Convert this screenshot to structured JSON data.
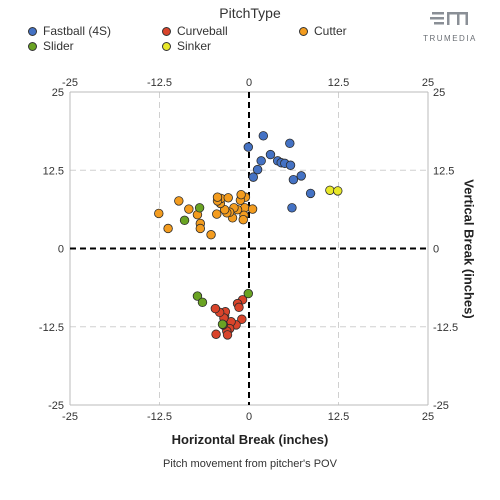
{
  "legend": {
    "title": "PitchType",
    "items": [
      {
        "label": "Fastball (4S)",
        "color": "#4472c4"
      },
      {
        "label": "Curveball",
        "color": "#d9442b"
      },
      {
        "label": "Cutter",
        "color": "#f39c1f"
      },
      {
        "label": "Slider",
        "color": "#6aa323"
      },
      {
        "label": "Sinker",
        "color": "#e8e82a"
      }
    ]
  },
  "brand": {
    "name": "TRUMEDIA"
  },
  "caption": "Pitch movement from pitcher's POV",
  "chart_data": {
    "type": "scatter",
    "xlabel": "Horizontal Break (inches)",
    "ylabel": "Vertical Break (inches)",
    "xlim": [
      -25,
      25
    ],
    "ylim": [
      -25,
      25
    ],
    "xticks": [
      -25,
      -12.5,
      0,
      12.5,
      25
    ],
    "yticks": [
      25,
      12.5,
      0,
      -12.5,
      -25
    ],
    "tick_labels_x": [
      "-25",
      "-12.5",
      "0",
      "12.5",
      "25"
    ],
    "tick_labels_y": [
      "25",
      "12.5",
      "0",
      "-12.5",
      "-25"
    ],
    "grid": true,
    "reference_lines": {
      "x": 0,
      "y": 0
    },
    "series": [
      {
        "name": "Fastball (4S)",
        "color": "#4472c4",
        "points": [
          [
            -0.1,
            16.2
          ],
          [
            2,
            18
          ],
          [
            1.7,
            14
          ],
          [
            3,
            15
          ],
          [
            4,
            14
          ],
          [
            4.5,
            13.7
          ],
          [
            5,
            13.6
          ],
          [
            5.8,
            13.3
          ],
          [
            5.7,
            16.8
          ],
          [
            1.2,
            12.6
          ],
          [
            0.6,
            11.4
          ],
          [
            6.2,
            11
          ],
          [
            7.3,
            11.6
          ],
          [
            8.6,
            8.8
          ],
          [
            6,
            6.5
          ]
        ]
      },
      {
        "name": "Curveball",
        "color": "#d9442b",
        "points": [
          [
            -0.9,
            -8.2
          ],
          [
            -1.6,
            -8.8
          ],
          [
            -1.4,
            -9.4
          ],
          [
            -1,
            -11.3
          ],
          [
            -1.8,
            -12.2
          ],
          [
            -2.5,
            -11.7
          ],
          [
            -2.7,
            -12.8
          ],
          [
            -3.1,
            -13.2
          ],
          [
            -3.4,
            -10.7
          ],
          [
            -3.3,
            -10.1
          ],
          [
            -3.5,
            -11.1
          ],
          [
            -3.6,
            -12.2
          ],
          [
            -4.1,
            -10.2
          ],
          [
            -4.7,
            -9.6
          ],
          [
            -4.6,
            -13.7
          ],
          [
            -3,
            -13.8
          ]
        ]
      },
      {
        "name": "Cutter",
        "color": "#f39c1f",
        "points": [
          [
            -0.5,
            8.2
          ],
          [
            -0.6,
            6.5
          ],
          [
            -0.7,
            5.3
          ],
          [
            -1.6,
            6.2
          ],
          [
            -1.2,
            7.7
          ],
          [
            -1.1,
            8.6
          ],
          [
            -2.1,
            6.5
          ],
          [
            -2.3,
            4.9
          ],
          [
            -2.7,
            5.8
          ],
          [
            -3.1,
            5.7
          ],
          [
            -3.4,
            6.2
          ],
          [
            -4,
            7.2
          ],
          [
            -3.9,
            8
          ],
          [
            -4.4,
            7.6
          ],
          [
            -4.4,
            8.2
          ],
          [
            -2.9,
            8.1
          ],
          [
            -4.5,
            5.5
          ],
          [
            -5.3,
            2.2
          ],
          [
            -6.8,
            4
          ],
          [
            -7.2,
            5.4
          ],
          [
            -6.8,
            3.2
          ],
          [
            -8.4,
            6.3
          ],
          [
            -9.8,
            7.6
          ],
          [
            -11.3,
            3.2
          ],
          [
            0.5,
            6.3
          ],
          [
            -12.6,
            5.6
          ],
          [
            -0.8,
            4.6
          ]
        ]
      },
      {
        "name": "Slider",
        "color": "#6aa323",
        "points": [
          [
            -6.9,
            6.5
          ],
          [
            -9,
            4.5
          ],
          [
            -7.2,
            -7.6
          ],
          [
            -6.5,
            -8.6
          ],
          [
            -3.7,
            -12.1
          ],
          [
            -0.1,
            -7.2
          ]
        ]
      },
      {
        "name": "Sinker",
        "color": "#e8e82a",
        "points": [
          [
            11.3,
            9.3
          ],
          [
            12.4,
            9.2
          ]
        ]
      }
    ]
  }
}
